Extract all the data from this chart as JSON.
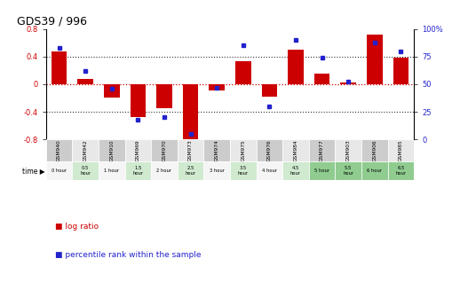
{
  "title": "GDS39 / 996",
  "samples": [
    "GSM940",
    "GSM942",
    "GSM910",
    "GSM969",
    "GSM970",
    "GSM973",
    "GSM974",
    "GSM975",
    "GSM976",
    "GSM984",
    "GSM977",
    "GSM903",
    "GSM906",
    "GSM985"
  ],
  "time_labels": [
    "0 hour",
    "0.5\nhour",
    "1 hour",
    "1.5\nhour",
    "2 hour",
    "2.5\nhour",
    "3 hour",
    "3.5\nhour",
    "4 hour",
    "4.5\nhour",
    "5 hour",
    "5.5\nhour",
    "6 hour",
    "6.5\nhour"
  ],
  "log_ratio": [
    0.48,
    0.08,
    -0.19,
    -0.48,
    -0.35,
    -0.82,
    -0.09,
    0.33,
    -0.18,
    0.5,
    0.15,
    0.02,
    0.72,
    0.38
  ],
  "percentile": [
    83,
    62,
    46,
    18,
    20,
    5,
    47,
    85,
    30,
    90,
    74,
    52,
    88,
    80
  ],
  "ylim_left": [
    -0.8,
    0.8
  ],
  "ylim_right": [
    0,
    100
  ],
  "yticks_left": [
    -0.8,
    -0.4,
    0.0,
    0.4,
    0.8
  ],
  "yticks_right": [
    0,
    25,
    50,
    75,
    100
  ],
  "bar_color": "#cc0000",
  "dot_color": "#2222cc",
  "zero_line_color": "#cc0000",
  "grid_color": "#000000",
  "bg_color": "#ffffff",
  "gsm_col1": "#cccccc",
  "gsm_col2": "#e8e8e8",
  "time_col_white": "#f5f5f5",
  "time_col_lightgreen": "#d0ead0",
  "time_col_green": "#90cc90",
  "time_alternating": [
    0,
    1,
    0,
    1,
    0,
    1,
    0,
    1,
    0,
    1,
    2,
    2,
    2,
    2
  ]
}
